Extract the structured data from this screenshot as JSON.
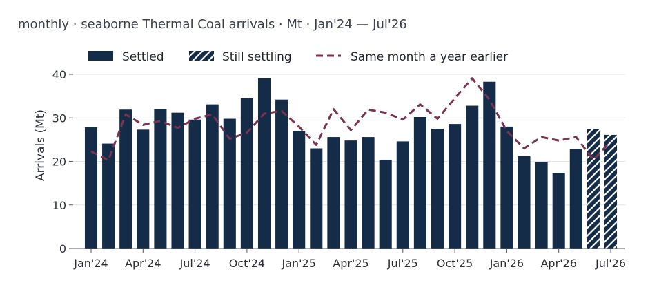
{
  "chart_data": {
    "type": "bar",
    "title": "monthly · seaborne Thermal Coal arrivals · Mt · Jan'24 — Jul'26",
    "xlabel": "",
    "ylabel": "Arrivals (Mt)",
    "ylim": [
      0,
      40
    ],
    "yticks": [
      0,
      10,
      20,
      30,
      40
    ],
    "grid": "horizontal",
    "legend_position": "top",
    "colors": {
      "settled": "#142c47",
      "line": "#7a3350",
      "hatch": "#ffffff"
    },
    "categories": [
      "Jan'24",
      "Feb'24",
      "Mar'24",
      "Apr'24",
      "May'24",
      "Jun'24",
      "Jul'24",
      "Aug'24",
      "Sep'24",
      "Oct'24",
      "Nov'24",
      "Dec'24",
      "Jan'25",
      "Feb'25",
      "Mar'25",
      "Apr'25",
      "May'25",
      "Jun'25",
      "Jul'25",
      "Aug'25",
      "Sep'25",
      "Oct'25",
      "Nov'25",
      "Dec'25",
      "Jan'26",
      "Feb'26",
      "Mar'26",
      "Apr'26",
      "May'26",
      "Jun'26",
      "Jul'26"
    ],
    "xticks": [
      {
        "index": 0,
        "label": "Jan'24"
      },
      {
        "index": 3,
        "label": "Apr'24"
      },
      {
        "index": 6,
        "label": "Jul'24"
      },
      {
        "index": 9,
        "label": "Oct'24"
      },
      {
        "index": 12,
        "label": "Jan'25"
      },
      {
        "index": 15,
        "label": "Apr'25"
      },
      {
        "index": 18,
        "label": "Jul'25"
      },
      {
        "index": 21,
        "label": "Oct'25"
      },
      {
        "index": 24,
        "label": "Jan'26"
      },
      {
        "index": 27,
        "label": "Apr'26"
      },
      {
        "index": 30,
        "label": "Jul'26"
      }
    ],
    "series": [
      {
        "name": "Settled",
        "kind": "bar",
        "values": [
          27.9,
          24.1,
          31.9,
          27.3,
          32.0,
          31.2,
          29.6,
          33.1,
          29.8,
          34.5,
          39.1,
          34.2,
          27.0,
          23.0,
          25.6,
          24.8,
          25.6,
          20.4,
          24.6,
          30.2,
          27.5,
          28.6,
          32.8,
          38.3,
          28.0,
          21.2,
          19.8,
          17.3,
          22.9,
          null,
          null
        ]
      },
      {
        "name": "Still settling",
        "kind": "bar-hatched",
        "values": [
          null,
          null,
          null,
          null,
          null,
          null,
          null,
          null,
          null,
          null,
          null,
          null,
          null,
          null,
          null,
          null,
          null,
          null,
          null,
          null,
          null,
          null,
          null,
          null,
          null,
          null,
          null,
          null,
          null,
          27.4,
          26.1
        ]
      },
      {
        "name": "Same month a year earlier",
        "kind": "line-dashed",
        "values": [
          22.3,
          20.3,
          30.8,
          28.4,
          29.3,
          27.7,
          29.8,
          30.8,
          25.2,
          26.6,
          31.0,
          31.6,
          28.0,
          23.8,
          32.0,
          27.2,
          31.9,
          31.2,
          29.6,
          33.1,
          29.8,
          34.5,
          39.1,
          34.2,
          27.0,
          23.0,
          25.6,
          24.8,
          25.6,
          20.4,
          24.6
        ]
      }
    ]
  }
}
